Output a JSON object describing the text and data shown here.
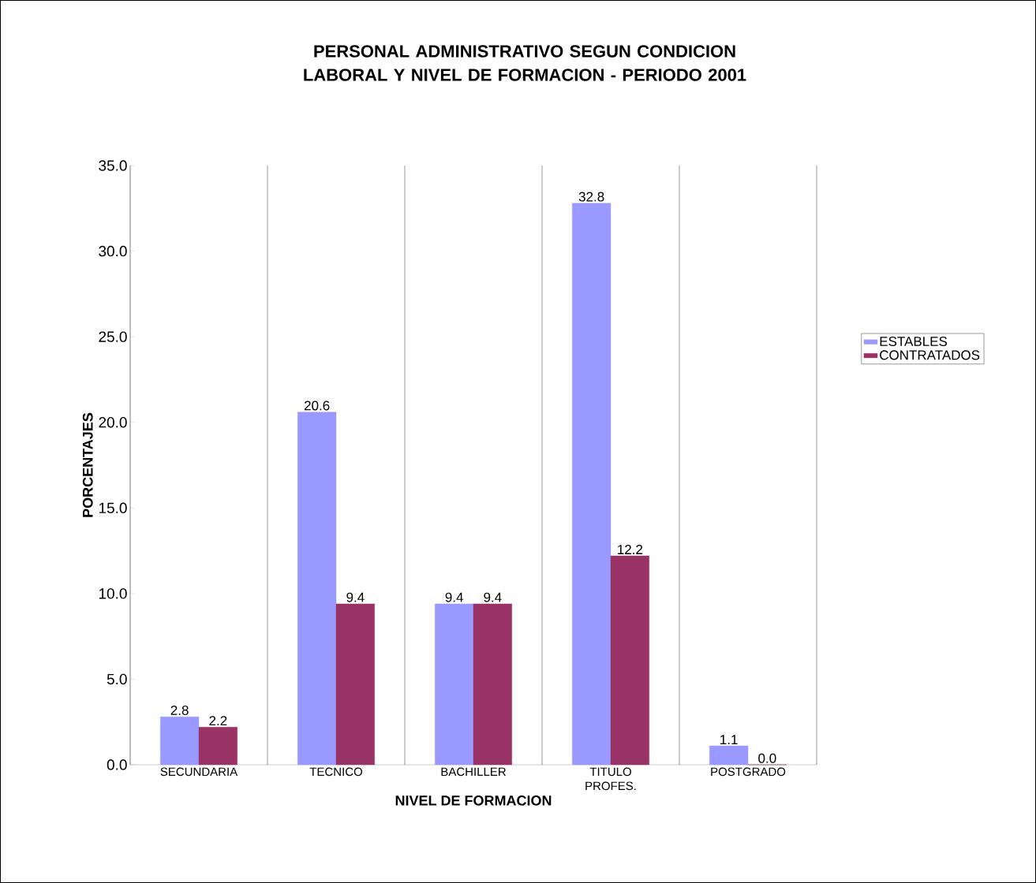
{
  "chart_data": {
    "type": "bar",
    "title": "PERSONAL ADMINISTRATIVO SEGUN CONDICION LABORAL Y NIVEL DE FORMACION - PERIODO 2001",
    "xlabel": "NIVEL DE FORMACION",
    "ylabel": "PORCENTAJES",
    "categories": [
      "SECUNDARIA",
      "TECNICO",
      "BACHILLER",
      "TITULO PROFES.",
      "POSTGRADO"
    ],
    "series": [
      {
        "name": "ESTABLES",
        "color": "#9999ff",
        "values": [
          2.8,
          20.6,
          9.4,
          32.8,
          1.1
        ],
        "value_labels": [
          "2.8",
          "20.6",
          "9.4",
          "32.8",
          "1.1"
        ]
      },
      {
        "name": "CONTRATADOS",
        "color": "#993366",
        "values": [
          2.2,
          9.4,
          9.4,
          12.2,
          0.0
        ],
        "value_labels": [
          "2.2",
          "9.4",
          "9.4",
          "12.2",
          "0.0"
        ]
      }
    ],
    "ylim": [
      0,
      35
    ],
    "yticks": [
      {
        "value": 0,
        "label": "0.0"
      },
      {
        "value": 5,
        "label": "5.0"
      },
      {
        "value": 10,
        "label": "10.0"
      },
      {
        "value": 15,
        "label": "15.0"
      },
      {
        "value": 20,
        "label": "20.0"
      },
      {
        "value": 25,
        "label": "25.0"
      },
      {
        "value": 30,
        "label": "30.0"
      },
      {
        "value": 35,
        "label": "35.0"
      }
    ],
    "grid": "x",
    "legend": "right"
  }
}
